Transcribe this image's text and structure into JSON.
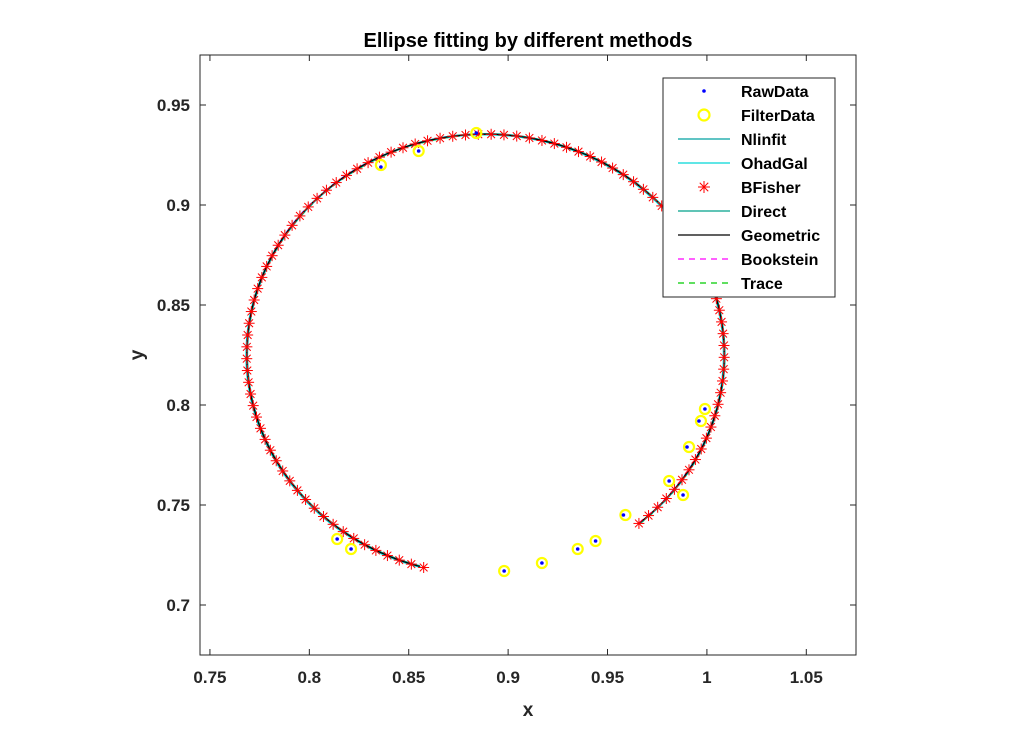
{
  "chart_data": {
    "type": "scatter",
    "title": "Ellipse fitting by different methods",
    "xlabel": "x",
    "ylabel": "y",
    "xlim": [
      0.745,
      1.075
    ],
    "ylim": [
      0.675,
      0.975
    ],
    "xticks": [
      0.75,
      0.8,
      0.85,
      0.9,
      0.95,
      1,
      1.05
    ],
    "xtick_labels": [
      "0.75",
      "0.8",
      "0.85",
      "0.9",
      "0.95",
      "1",
      "1.05"
    ],
    "yticks": [
      0.7,
      0.75,
      0.8,
      0.85,
      0.9,
      0.95
    ],
    "ytick_labels": [
      "0.7",
      "0.75",
      "0.8",
      "0.85",
      "0.9",
      "0.95"
    ],
    "grid": false,
    "legend_position": "top-right",
    "ellipse_fit": {
      "center_x": 0.8886,
      "center_y": 0.8252,
      "semi_axis_x": 0.1201,
      "semi_axis_y": 0.1102,
      "arc_start_deg": -50,
      "arc_end_deg": 255
    },
    "series": [
      {
        "name": "RawData",
        "marker": "dot",
        "color": "#0000ff",
        "points": [
          [
            0.884,
            0.936
          ],
          [
            0.855,
            0.927
          ],
          [
            0.836,
            0.919
          ],
          [
            0.814,
            0.733
          ],
          [
            0.821,
            0.728
          ],
          [
            0.898,
            0.717
          ],
          [
            0.917,
            0.721
          ],
          [
            0.935,
            0.728
          ],
          [
            0.944,
            0.732
          ],
          [
            0.958,
            0.745
          ],
          [
            0.981,
            0.762
          ],
          [
            0.988,
            0.755
          ],
          [
            0.99,
            0.779
          ],
          [
            0.996,
            0.792
          ],
          [
            0.999,
            0.798
          ]
        ]
      },
      {
        "name": "FilterData",
        "marker": "circle",
        "color": "#ffff00",
        "points": [
          [
            0.884,
            0.936
          ],
          [
            0.855,
            0.927
          ],
          [
            0.836,
            0.92
          ],
          [
            0.814,
            0.733
          ],
          [
            0.821,
            0.728
          ],
          [
            0.898,
            0.717
          ],
          [
            0.917,
            0.721
          ],
          [
            0.935,
            0.728
          ],
          [
            0.944,
            0.732
          ],
          [
            0.959,
            0.745
          ],
          [
            0.981,
            0.762
          ],
          [
            0.988,
            0.755
          ],
          [
            0.991,
            0.779
          ],
          [
            0.997,
            0.792
          ],
          [
            0.999,
            0.798
          ]
        ]
      },
      {
        "name": "Nlinfit",
        "style": "solid-line",
        "color": "#00a0a0"
      },
      {
        "name": "OhadGal",
        "style": "solid-line",
        "color": "#00d8d8"
      },
      {
        "name": "BFisher",
        "style": "star-markers",
        "color": "#ff0000",
        "marker_count": 100
      },
      {
        "name": "Direct",
        "style": "solid-line",
        "color": "#00a08a"
      },
      {
        "name": "Geometric",
        "style": "solid-line",
        "color": "#000000"
      },
      {
        "name": "Bookstein",
        "style": "dashed-line",
        "color": "#ff00ff"
      },
      {
        "name": "Trace",
        "style": "dashed-line",
        "color": "#00cc00"
      }
    ]
  }
}
